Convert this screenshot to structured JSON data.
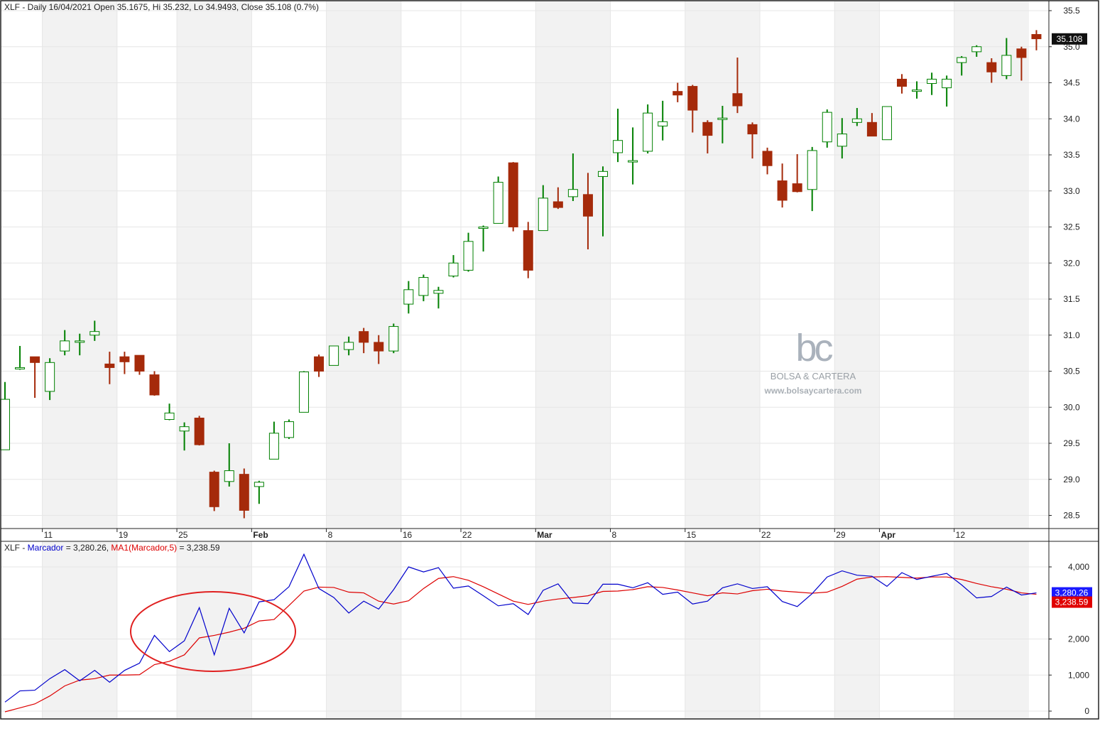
{
  "header": {
    "price_title": "XLF - Daily 16/04/2021 Open 35.1675, Hi 35.232, Lo 34.9493, Close 35.108 (0.7%)",
    "ind_prefix": "XLF - ",
    "ind_series1": "Marcador",
    "ind_series1_value": " = 3,280.26, ",
    "ind_series2": "MA1(Marcador,5)",
    "ind_series2_value": " = 3,238.59"
  },
  "watermark": {
    "logo": "bc",
    "name": "BOLSA & CARTERA",
    "url": "www.bolsaycartera.com"
  },
  "colors": {
    "up": "#008000",
    "down": "#a52a0a",
    "ind_line": "#0000cc",
    "ma_line": "#dd0000",
    "ellipse": "#e02020",
    "band": "#f2f2f2",
    "grid": "#e6e6e6"
  },
  "chart_data": [
    {
      "type": "candlestick",
      "ylim": [
        28.3,
        35.6
      ],
      "yticks": [
        "28.5",
        "29.0",
        "29.5",
        "30.0",
        "30.5",
        "31.0",
        "31.5",
        "32.0",
        "32.5",
        "33.0",
        "33.5",
        "34.0",
        "34.5",
        "35.0",
        "35.5"
      ],
      "last_price_label": "35.108",
      "x_labels": [
        {
          "label": "11",
          "index": 3
        },
        {
          "label": "19",
          "index": 8
        },
        {
          "label": "25",
          "index": 12
        },
        {
          "label": "Feb",
          "index": 17
        },
        {
          "label": "8",
          "index": 22
        },
        {
          "label": "16",
          "index": 27
        },
        {
          "label": "22",
          "index": 31
        },
        {
          "label": "Mar",
          "index": 36
        },
        {
          "label": "8",
          "index": 41
        },
        {
          "label": "15",
          "index": 46
        },
        {
          "label": "22",
          "index": 51
        },
        {
          "label": "29",
          "index": 56
        },
        {
          "label": "Apr",
          "index": 59
        },
        {
          "label": "12",
          "index": 64
        }
      ],
      "candles": [
        {
          "o": 29.41,
          "h": 30.35,
          "l": 29.41,
          "c": 30.11
        },
        {
          "o": 30.55,
          "h": 30.85,
          "l": 30.52,
          "c": 30.55
        },
        {
          "o": 30.7,
          "h": 30.7,
          "l": 30.13,
          "c": 30.62
        },
        {
          "o": 30.22,
          "h": 30.68,
          "l": 30.1,
          "c": 30.62
        },
        {
          "o": 30.78,
          "h": 31.07,
          "l": 30.72,
          "c": 30.92
        },
        {
          "o": 30.9,
          "h": 31.02,
          "l": 30.72,
          "c": 30.92
        },
        {
          "o": 31.0,
          "h": 31.2,
          "l": 30.92,
          "c": 31.05
        },
        {
          "o": 30.6,
          "h": 30.77,
          "l": 30.32,
          "c": 30.55
        },
        {
          "o": 30.7,
          "h": 30.77,
          "l": 30.46,
          "c": 30.63
        },
        {
          "o": 30.72,
          "h": 30.72,
          "l": 30.45,
          "c": 30.5
        },
        {
          "o": 30.45,
          "h": 30.5,
          "l": 30.16,
          "c": 30.17
        },
        {
          "o": 29.83,
          "h": 30.05,
          "l": 29.82,
          "c": 29.92
        },
        {
          "o": 29.67,
          "h": 29.79,
          "l": 29.4,
          "c": 29.73
        },
        {
          "o": 29.85,
          "h": 29.88,
          "l": 29.47,
          "c": 29.48
        },
        {
          "o": 29.1,
          "h": 29.12,
          "l": 28.56,
          "c": 28.62
        },
        {
          "o": 28.97,
          "h": 29.5,
          "l": 28.9,
          "c": 29.12
        },
        {
          "o": 29.07,
          "h": 29.15,
          "l": 28.46,
          "c": 28.57
        },
        {
          "o": 28.9,
          "h": 28.98,
          "l": 28.66,
          "c": 28.96
        },
        {
          "o": 29.28,
          "h": 29.8,
          "l": 29.28,
          "c": 29.64
        },
        {
          "o": 29.58,
          "h": 29.83,
          "l": 29.56,
          "c": 29.8
        },
        {
          "o": 29.93,
          "h": 30.5,
          "l": 29.93,
          "c": 30.49
        },
        {
          "o": 30.7,
          "h": 30.73,
          "l": 30.42,
          "c": 30.5
        },
        {
          "o": 30.58,
          "h": 30.85,
          "l": 30.58,
          "c": 30.85
        },
        {
          "o": 30.8,
          "h": 30.98,
          "l": 30.72,
          "c": 30.9
        },
        {
          "o": 31.05,
          "h": 31.1,
          "l": 30.75,
          "c": 30.9
        },
        {
          "o": 30.9,
          "h": 31.0,
          "l": 30.6,
          "c": 30.78
        },
        {
          "o": 30.78,
          "h": 31.16,
          "l": 30.75,
          "c": 31.12
        },
        {
          "o": 31.43,
          "h": 31.75,
          "l": 31.3,
          "c": 31.63
        },
        {
          "o": 31.55,
          "h": 31.84,
          "l": 31.47,
          "c": 31.8
        },
        {
          "o": 31.58,
          "h": 31.67,
          "l": 31.37,
          "c": 31.62
        },
        {
          "o": 31.82,
          "h": 32.11,
          "l": 31.8,
          "c": 32.0
        },
        {
          "o": 31.9,
          "h": 32.42,
          "l": 31.88,
          "c": 32.3
        },
        {
          "o": 32.5,
          "h": 32.52,
          "l": 32.16,
          "c": 32.5
        },
        {
          "o": 32.55,
          "h": 33.2,
          "l": 32.55,
          "c": 33.12
        },
        {
          "o": 33.39,
          "h": 33.4,
          "l": 32.44,
          "c": 32.5
        },
        {
          "o": 32.45,
          "h": 32.57,
          "l": 31.79,
          "c": 31.9
        },
        {
          "o": 32.45,
          "h": 33.08,
          "l": 32.45,
          "c": 32.9
        },
        {
          "o": 32.85,
          "h": 33.05,
          "l": 32.75,
          "c": 32.77
        },
        {
          "o": 32.92,
          "h": 33.52,
          "l": 32.86,
          "c": 33.02
        },
        {
          "o": 32.95,
          "h": 33.25,
          "l": 32.19,
          "c": 32.65
        },
        {
          "o": 33.2,
          "h": 33.34,
          "l": 32.37,
          "c": 33.27
        },
        {
          "o": 33.53,
          "h": 34.14,
          "l": 33.4,
          "c": 33.7
        },
        {
          "o": 33.42,
          "h": 33.88,
          "l": 33.09,
          "c": 33.42
        },
        {
          "o": 33.55,
          "h": 34.2,
          "l": 33.52,
          "c": 34.08
        },
        {
          "o": 33.9,
          "h": 34.25,
          "l": 33.7,
          "c": 33.96
        },
        {
          "o": 34.38,
          "h": 34.5,
          "l": 34.23,
          "c": 34.33
        },
        {
          "o": 34.45,
          "h": 34.47,
          "l": 33.81,
          "c": 34.12
        },
        {
          "o": 33.95,
          "h": 33.98,
          "l": 33.52,
          "c": 33.77
        },
        {
          "o": 34.01,
          "h": 34.18,
          "l": 33.66,
          "c": 34.01
        },
        {
          "o": 34.35,
          "h": 34.85,
          "l": 34.08,
          "c": 34.18
        },
        {
          "o": 33.92,
          "h": 33.95,
          "l": 33.45,
          "c": 33.79
        },
        {
          "o": 33.55,
          "h": 33.6,
          "l": 33.23,
          "c": 33.35
        },
        {
          "o": 33.14,
          "h": 33.38,
          "l": 32.77,
          "c": 32.87
        },
        {
          "o": 33.1,
          "h": 33.51,
          "l": 32.98,
          "c": 32.99
        },
        {
          "o": 33.02,
          "h": 33.61,
          "l": 32.72,
          "c": 33.56
        },
        {
          "o": 33.68,
          "h": 34.13,
          "l": 33.6,
          "c": 34.09
        },
        {
          "o": 33.62,
          "h": 34.01,
          "l": 33.45,
          "c": 33.79
        },
        {
          "o": 33.95,
          "h": 34.15,
          "l": 33.9,
          "c": 34.0
        },
        {
          "o": 33.95,
          "h": 34.08,
          "l": 33.76,
          "c": 33.76
        },
        {
          "o": 33.71,
          "h": 34.17,
          "l": 33.71,
          "c": 34.17
        },
        {
          "o": 34.55,
          "h": 34.62,
          "l": 34.35,
          "c": 34.45
        },
        {
          "o": 34.4,
          "h": 34.52,
          "l": 34.28,
          "c": 34.4
        },
        {
          "o": 34.49,
          "h": 34.64,
          "l": 34.33,
          "c": 34.55
        },
        {
          "o": 34.43,
          "h": 34.6,
          "l": 34.17,
          "c": 34.55
        },
        {
          "o": 34.78,
          "h": 34.87,
          "l": 34.6,
          "c": 34.85
        },
        {
          "o": 34.93,
          "h": 35.02,
          "l": 34.86,
          "c": 35.0
        },
        {
          "o": 34.78,
          "h": 34.84,
          "l": 34.5,
          "c": 34.65
        },
        {
          "o": 34.6,
          "h": 35.12,
          "l": 34.55,
          "c": 34.88
        },
        {
          "o": 34.97,
          "h": 35.0,
          "l": 34.53,
          "c": 34.85
        },
        {
          "o": 35.17,
          "h": 35.23,
          "l": 34.95,
          "c": 35.11
        }
      ]
    },
    {
      "type": "line",
      "ylim": [
        -120,
        4450
      ],
      "yticks": [
        "0",
        "1,000",
        "2,000",
        "4,000"
      ],
      "series": [
        {
          "name": "Marcador",
          "last_label": "3,280.26",
          "values": [
            250,
            560,
            580,
            900,
            1150,
            840,
            1130,
            800,
            1130,
            1330,
            2100,
            1650,
            1950,
            2870,
            1560,
            2850,
            2170,
            3030,
            3090,
            3450,
            4350,
            3400,
            3150,
            2720,
            3050,
            2830,
            3370,
            4000,
            3860,
            3980,
            3410,
            3470,
            3200,
            2920,
            2980,
            2680,
            3350,
            3530,
            3000,
            2980,
            3520,
            3520,
            3420,
            3560,
            3240,
            3300,
            2970,
            3050,
            3420,
            3530,
            3400,
            3450,
            3040,
            2900,
            3260,
            3720,
            3890,
            3770,
            3740,
            3460,
            3840,
            3650,
            3740,
            3820,
            3500,
            3140,
            3180,
            3440,
            3220,
            3280
          ]
        },
        {
          "name": "MA1(Marcador,5)",
          "last_label": "3,238.59",
          "values": [
            -20,
            90,
            200,
            420,
            700,
            860,
            900,
            1000,
            1000,
            1010,
            1290,
            1380,
            1560,
            2030,
            2100,
            2190,
            2300,
            2500,
            2540,
            2930,
            3330,
            3440,
            3430,
            3300,
            3280,
            3050,
            2970,
            3060,
            3400,
            3680,
            3730,
            3630,
            3450,
            3250,
            3050,
            2960,
            3050,
            3110,
            3150,
            3200,
            3320,
            3330,
            3370,
            3450,
            3430,
            3360,
            3280,
            3200,
            3280,
            3250,
            3340,
            3380,
            3330,
            3300,
            3270,
            3300,
            3460,
            3660,
            3720,
            3730,
            3710,
            3690,
            3720,
            3720,
            3650,
            3540,
            3450,
            3380,
            3280,
            3240
          ]
        }
      ],
      "annotation": "ellipse"
    }
  ]
}
